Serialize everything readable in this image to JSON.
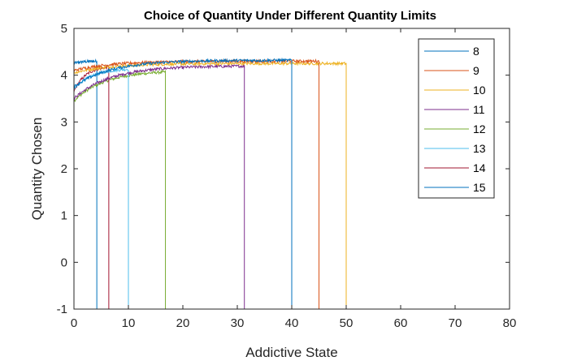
{
  "chart_data": {
    "type": "line",
    "title": "Choice of Quantity Under Different Quantity Limits",
    "xlabel": "Addictive State",
    "ylabel": "Quantity Chosen",
    "xlim": [
      0,
      80
    ],
    "ylim": [
      -1,
      5
    ],
    "xticks": [
      "0",
      "10",
      "20",
      "30",
      "40",
      "50",
      "60",
      "70",
      "80"
    ],
    "yticks": [
      "-1",
      "0",
      "1",
      "2",
      "3",
      "4",
      "5"
    ],
    "legend_position": "top-right",
    "series": [
      {
        "name": "8",
        "color": "#0072BD",
        "start": 3.75,
        "end": 4.32,
        "x_end": 40,
        "cutoff": 4.2,
        "x_tail_end": 75
      },
      {
        "name": "9",
        "color": "#D95319",
        "start": 4.1,
        "end": 4.3,
        "x_end": 45,
        "cutoff": 4.3,
        "x_tail_end": 75
      },
      {
        "name": "10",
        "color": "#EDB120",
        "start": 4.05,
        "end": 4.25,
        "x_end": 50,
        "cutoff": 4.4,
        "x_tail_end": 75
      },
      {
        "name": "11",
        "color": "#7E2F8E",
        "start": 3.5,
        "end": 4.2,
        "x_end": 31.3,
        "cutoff": 31.3,
        "x_tail_end": 75
      },
      {
        "name": "12",
        "color": "#77AC30",
        "start": 3.45,
        "end": 4.1,
        "x_end": 16.8,
        "cutoff": 16.8,
        "x_tail_end": 75
      },
      {
        "name": "13",
        "color": "#4DBEEE",
        "start": 3.7,
        "end": 4.15,
        "x_end": 10.0,
        "cutoff": 10.0,
        "x_tail_end": 75
      },
      {
        "name": "14",
        "color": "#A2142F",
        "start": 3.65,
        "end": 4.2,
        "x_end": 6.4,
        "cutoff": 6.4,
        "x_tail_end": 75
      },
      {
        "name": "15",
        "color": "#0072BD",
        "start": 4.25,
        "end": 4.3,
        "x_end": 4.2,
        "cutoff": 4.2,
        "x_tail_end": 75
      }
    ]
  }
}
